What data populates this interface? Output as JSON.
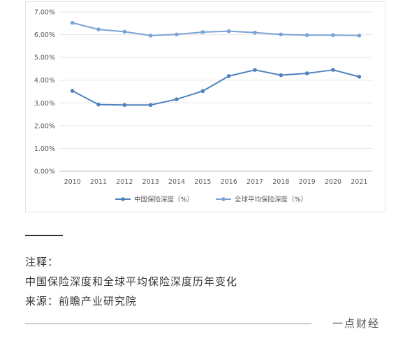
{
  "chart_data": {
    "type": "line",
    "categories": [
      "2010",
      "2011",
      "2012",
      "2013",
      "2014",
      "2015",
      "2016",
      "2017",
      "2018",
      "2019",
      "2020",
      "2021"
    ],
    "series": [
      {
        "name": "中国保险深度（%）",
        "values": [
          3.53,
          2.93,
          2.91,
          2.91,
          3.16,
          3.52,
          4.18,
          4.45,
          4.22,
          4.3,
          4.45,
          4.15
        ],
        "color": "#4f81bd"
      },
      {
        "name": "全球平均保险深度（%）",
        "values": [
          6.52,
          6.23,
          6.13,
          5.96,
          6.01,
          6.11,
          6.15,
          6.09,
          6.01,
          5.98,
          5.98,
          5.96
        ],
        "color": "#7aa3d4"
      }
    ],
    "ylim": [
      0,
      7
    ],
    "yticks": [
      "0.00%",
      "1.00%",
      "2.00%",
      "3.00%",
      "4.00%",
      "5.00%",
      "6.00%",
      "7.00%"
    ],
    "legend_position": "bottom",
    "grid": true
  },
  "notes": {
    "label": "注释：",
    "description": "中国保险深度和全球平均保险深度历年变化",
    "source": "来源：前瞻产业研究院"
  },
  "footer": {
    "brand": "一点财经"
  }
}
